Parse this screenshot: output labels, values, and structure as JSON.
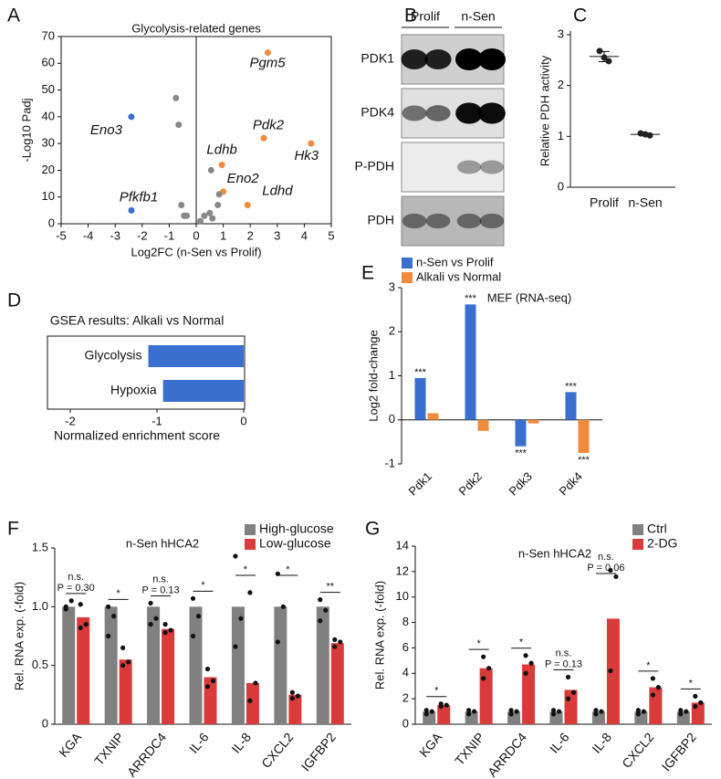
{
  "chart_data": [
    {
      "panel": "A",
      "type": "scatter",
      "title": "Glycolysis-related genes",
      "xlabel": "Log2FC (n-Sen vs Prolif)",
      "ylabel": "-Log10 Padj",
      "x": [
        2.65,
        -2.4,
        2.5,
        4.25,
        0.95,
        1.0,
        1.9,
        -2.4,
        -0.75,
        -0.65,
        -0.55,
        -0.45,
        -0.35,
        0.15,
        0.3,
        0.5,
        0.6,
        0.8,
        0.55,
        0.85
      ],
      "values": [
        64,
        40,
        32,
        30,
        22,
        12,
        7,
        5,
        47,
        37,
        7,
        3,
        3,
        1,
        3,
        4,
        2,
        7,
        20,
        11
      ],
      "colors": [
        "#f08a3c",
        "#3a6fd0",
        "#f08a3c",
        "#f08a3c",
        "#f08a3c",
        "#f08a3c",
        "#f08a3c",
        "#3a6fd0",
        "#888888",
        "#888888",
        "#888888",
        "#888888",
        "#888888",
        "#888888",
        "#888888",
        "#888888",
        "#888888",
        "#888888",
        "#888888",
        "#888888"
      ],
      "point_labels": [
        "Pgm5",
        "Eno3",
        "Pdk2",
        "Hk3",
        "Ldhb",
        "Eno2",
        "Ldhd",
        "Pfkfb1",
        null,
        null,
        null,
        null,
        null,
        null,
        null,
        null,
        null,
        null,
        null,
        null
      ],
      "xlim": [
        -5,
        5
      ],
      "xticks": [
        -5,
        -4,
        -3,
        -2,
        -1,
        0,
        1,
        2,
        3,
        4,
        5
      ],
      "ylim": [
        0,
        70
      ],
      "yticks": [
        0,
        10,
        20,
        30,
        40,
        50,
        60,
        70
      ]
    },
    {
      "panel": "C",
      "type": "strip",
      "ylabel": "Relative PDH activity",
      "categories": [
        "Prolif",
        "n-Sen"
      ],
      "values": [
        2.57,
        1.04
      ],
      "errors": [
        0.1,
        0.02
      ],
      "points": [
        [
          2.68,
          2.55,
          2.48
        ],
        [
          1.06,
          1.04,
          1.02
        ]
      ],
      "color": "#222222",
      "ylim": [
        0,
        3
      ],
      "yticks": [
        0,
        1,
        2,
        3
      ]
    },
    {
      "panel": "D",
      "type": "hbar",
      "title": "GSEA results: Alkali vs Normal",
      "xlabel": "Normalized enrichment score",
      "categories": [
        "Glycolysis",
        "Hypoxia"
      ],
      "values": [
        -1.1,
        -0.93
      ],
      "color": "#3a6fd0",
      "xlim": [
        -2,
        0
      ],
      "xticks": [
        -2,
        -1,
        0
      ]
    },
    {
      "panel": "E",
      "type": "grouped_bar",
      "ylabel": "Log2 fold-change",
      "annotation": "MEF (RNA-seq)",
      "categories": [
        "Pdk1",
        "Pdk2",
        "Pdk3",
        "Pdk4"
      ],
      "series": [
        {
          "name": "n-Sen vs Prolif",
          "color": "#3a6fd0",
          "values": [
            0.95,
            2.62,
            -0.6,
            0.63
          ],
          "significance": [
            "***",
            "***",
            "***",
            "***"
          ]
        },
        {
          "name": "Alkali vs Normal",
          "color": "#f08a3c",
          "values": [
            0.15,
            -0.25,
            -0.08,
            -0.75
          ],
          "significance": [
            null,
            null,
            null,
            "***"
          ]
        }
      ],
      "ylim": [
        -1,
        3
      ],
      "yticks": [
        -1,
        0,
        1,
        2,
        3
      ]
    },
    {
      "panel": "F",
      "type": "bar_dot",
      "title": "n-Sen hHCA2",
      "ylabel": "Rel. RNA exp. (-fold)",
      "categories": [
        "KGA",
        "TXNIP",
        "ARRDC4",
        "IL-6",
        "IL-8",
        "CXCL2",
        "IGFBP2"
      ],
      "series": [
        {
          "name": "High-glucose",
          "color": "#808080",
          "values": [
            1,
            1,
            1,
            1,
            1,
            1,
            1
          ],
          "points": [
            [
              1.0,
              1.05,
              0.98
            ],
            [
              1.0,
              0.92,
              0.75
            ],
            [
              1.03,
              0.9,
              0.85
            ],
            [
              1.07,
              0.92,
              0.75
            ],
            [
              1.43,
              0.9,
              0.66
            ],
            [
              1.28,
              1.0,
              0.7
            ],
            [
              1.06,
              0.97,
              0.88
            ]
          ]
        },
        {
          "name": "Low-glucose",
          "color": "#d93a3a",
          "values": [
            0.91,
            0.55,
            0.81,
            0.4,
            0.35,
            0.25,
            0.69
          ],
          "points": [
            [
              1.02,
              0.85,
              0.82
            ],
            [
              0.65,
              0.53,
              0.5
            ],
            [
              0.85,
              0.8,
              0.78
            ],
            [
              0.47,
              0.37,
              0.32
            ],
            [
              1.12,
              0.35,
              0.2
            ],
            [
              0.27,
              0.24,
              0.22
            ],
            [
              0.72,
              0.7,
              0.66
            ]
          ]
        }
      ],
      "significance": [
        "n.s.",
        "*",
        "n.s.",
        "*",
        "*",
        "*",
        "**"
      ],
      "p_labels": [
        "P = 0.30",
        null,
        "P = 0.13",
        null,
        null,
        null,
        null
      ],
      "ylim": [
        0,
        1.5
      ],
      "yticks": [
        0,
        0.5,
        {
          "value": 1,
          "label": "1.0"
        },
        1.5
      ]
    },
    {
      "panel": "G",
      "type": "bar_dot",
      "title": "n-Sen hHCA2",
      "ylabel": "Rel. RNA exp. (-fold)",
      "categories": [
        "KGA",
        "TXNIP",
        "ARRDC4",
        "IL-6",
        "IL-8",
        "CXCL2",
        "IGFBP2"
      ],
      "series": [
        {
          "name": "Ctrl",
          "color": "#808080",
          "values": [
            1,
            1,
            1,
            1,
            1,
            1,
            1
          ],
          "points": [
            [
              1.1,
              1.0,
              0.8
            ],
            [
              1.1,
              1.0,
              0.8
            ],
            [
              1.1,
              1.0,
              0.8
            ],
            [
              1.1,
              1.0,
              0.8
            ],
            [
              1.1,
              1.0,
              0.8
            ],
            [
              1.1,
              1.0,
              0.8
            ],
            [
              1.1,
              1.0,
              0.8
            ]
          ]
        },
        {
          "name": "2-DG",
          "color": "#d93a3a",
          "values": [
            1.5,
            4.4,
            4.7,
            2.7,
            8.3,
            2.9,
            1.7
          ],
          "points": [
            [
              1.6,
              1.5,
              1.4
            ],
            [
              5.3,
              4.4,
              3.6
            ],
            [
              5.4,
              4.8,
              4.0
            ],
            [
              3.7,
              2.5,
              2.0
            ],
            [
              12.1,
              11.6,
              4.2
            ],
            [
              3.6,
              2.9,
              2.3
            ],
            [
              2.2,
              1.7,
              1.4
            ]
          ]
        }
      ],
      "significance": [
        "*",
        "*",
        "*",
        "n.s.",
        "n.s.",
        "*",
        "*"
      ],
      "p_labels": [
        null,
        null,
        null,
        "P = 0.13",
        "P = 0.06",
        null,
        null
      ],
      "ylim": [
        0,
        14
      ],
      "yticks": [
        0,
        2,
        4,
        6,
        8,
        10,
        12,
        14
      ]
    }
  ],
  "blot": {
    "panel": "B",
    "columns": [
      "Prolif",
      "n-Sen"
    ],
    "rows": [
      "PDK1",
      "PDK4",
      "P-PDH",
      "PDH"
    ]
  }
}
